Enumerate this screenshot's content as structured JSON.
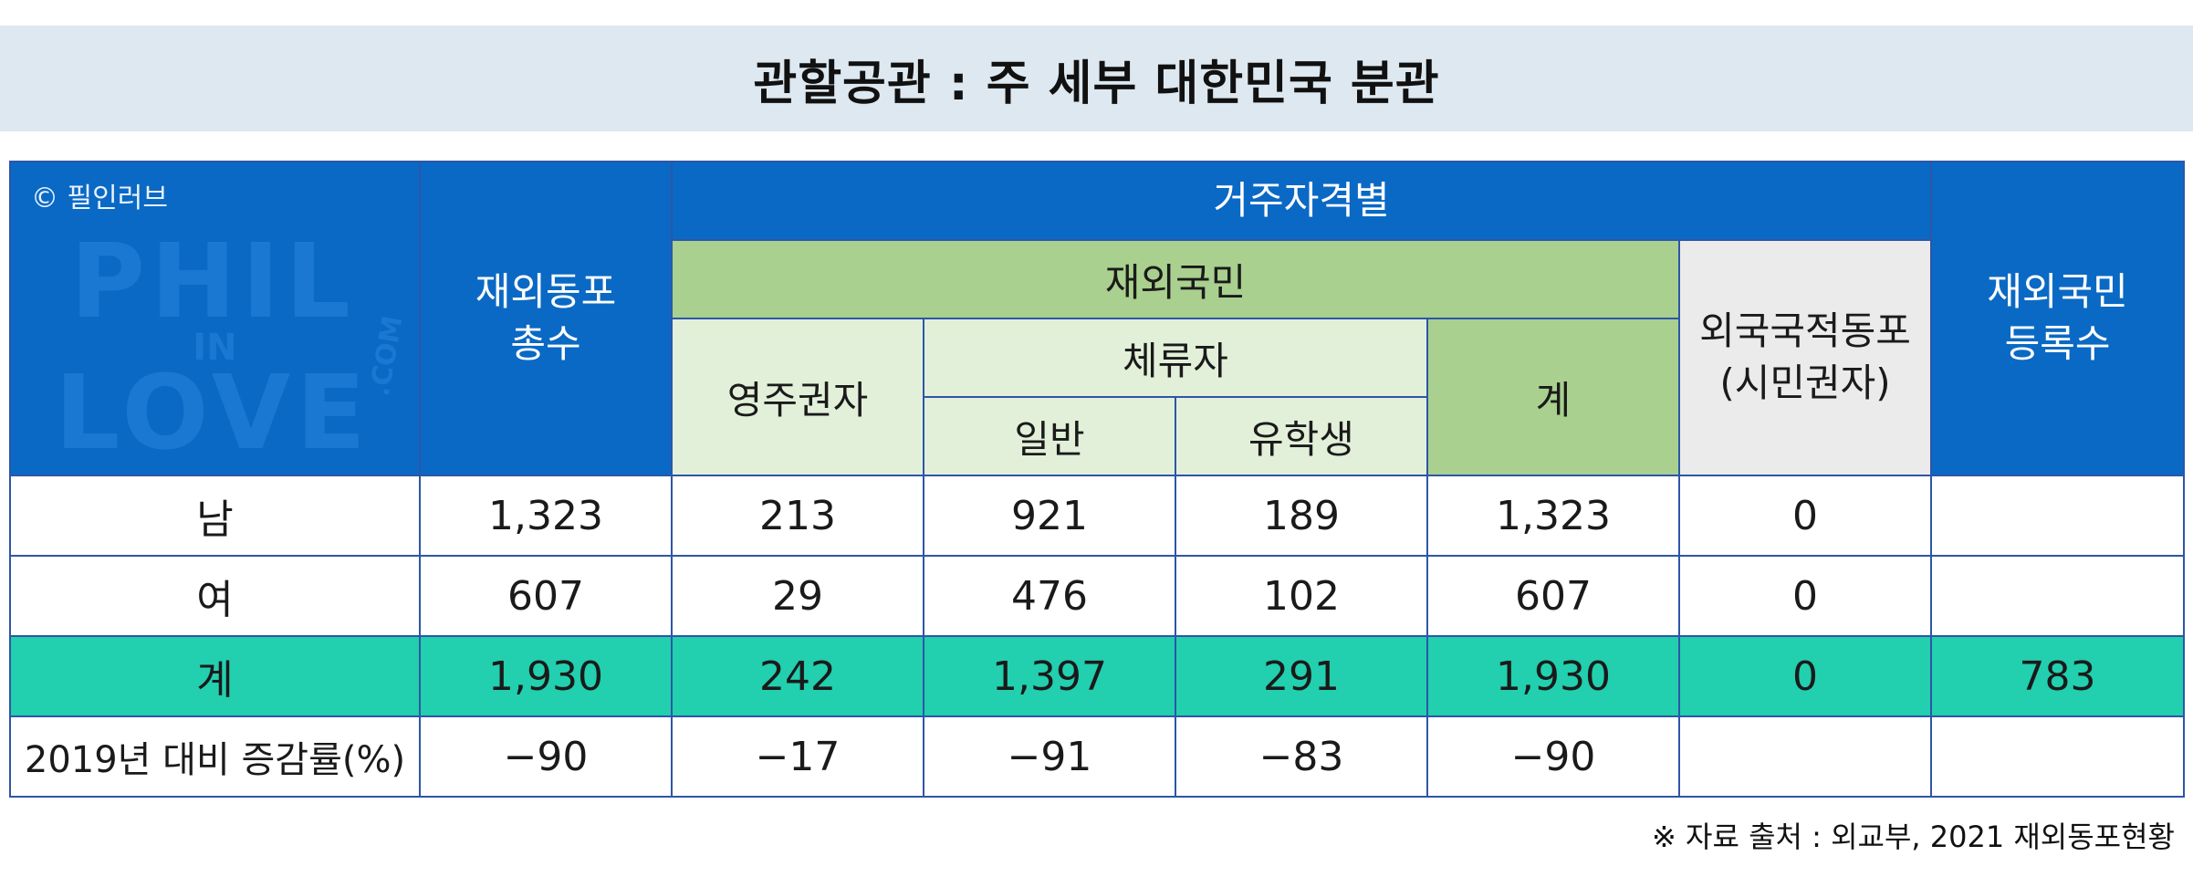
{
  "title": "관할공관 : 주 세부 대한민국 분관",
  "corner": {
    "copyright": "© 필인러브",
    "watermark_line1": "PHIL",
    "watermark_line2": "IN",
    "watermark_line3": "LOVE",
    "watermark_com": ".COM"
  },
  "headers": {
    "total_line1": "재외동포",
    "total_line2": "총수",
    "residence": "거주자격별",
    "overseas_koreans": "재외국민",
    "permanent": "영주권자",
    "sojourner": "체류자",
    "general": "일반",
    "student": "유학생",
    "subtotal": "계",
    "foreign_line1": "외국국적동포",
    "foreign_line2": "(시민권자)",
    "registered_line1": "재외국민",
    "registered_line2": "등록수"
  },
  "rows": [
    {
      "label": "남",
      "total": "1,323",
      "permanent": "213",
      "general": "921",
      "student": "189",
      "subtotal": "1,323",
      "foreign": "0",
      "registered": ""
    },
    {
      "label": "여",
      "total": "607",
      "permanent": "29",
      "general": "476",
      "student": "102",
      "subtotal": "607",
      "foreign": "0",
      "registered": ""
    },
    {
      "label": "계",
      "total": "1,930",
      "permanent": "242",
      "general": "1,397",
      "student": "291",
      "subtotal": "1,930",
      "foreign": "0",
      "registered": "783"
    },
    {
      "label": "2019년 대비 증감률(%)",
      "total": "−90",
      "permanent": "−17",
      "general": "−91",
      "student": "−83",
      "subtotal": "−90",
      "foreign": "",
      "registered": ""
    }
  ],
  "source": "※ 자료 출처 :  외교부, 2021 재외동포현황",
  "colors": {
    "header_blue": "#0a69c4",
    "green": "#a9d08e",
    "light_green": "#e2f0d9",
    "gray": "#ebebeb",
    "total_row": "#22cfae",
    "title_bg": "#dde8f0"
  }
}
